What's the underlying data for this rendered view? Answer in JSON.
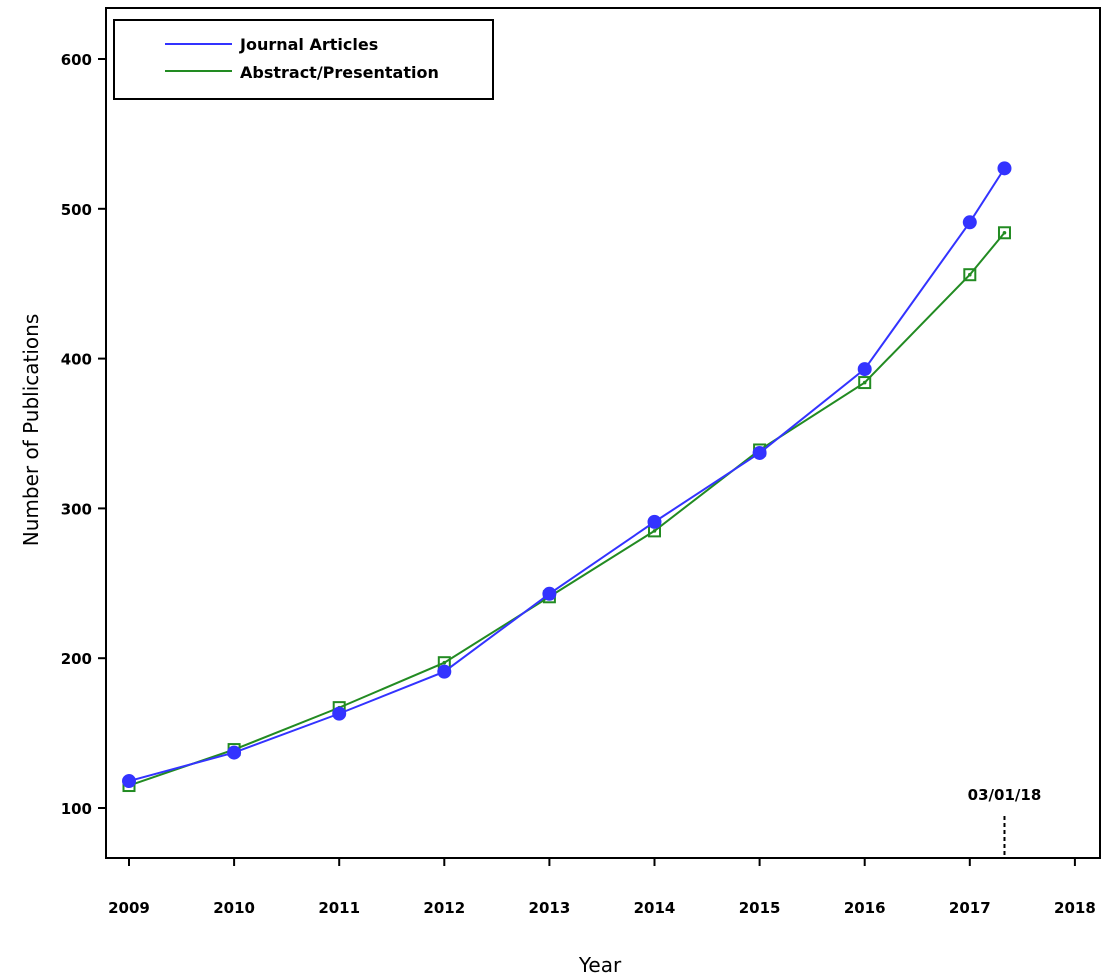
{
  "chart_data": {
    "type": "line",
    "title": "",
    "xlabel": "Year",
    "ylabel": "Number of Publications",
    "xlim": [
      2009,
      2018
    ],
    "ylim": [
      70,
      635
    ],
    "x_ticks": [
      "2009",
      "2010",
      "2011",
      "2012",
      "2013",
      "2014",
      "2015",
      "2016",
      "2017",
      "2018"
    ],
    "y_ticks": [
      "100",
      "200",
      "300",
      "400",
      "500",
      "600"
    ],
    "grid": false,
    "legend_position": "top-left",
    "series": [
      {
        "name": "Journal Articles",
        "color": "#3333ff",
        "marker": "filled-circle",
        "x": [
          2009,
          2010,
          2011,
          2012,
          2013,
          2014,
          2015,
          2016,
          2017,
          2017.33
        ],
        "y": [
          118,
          137,
          163,
          191,
          243,
          291,
          337,
          393,
          491,
          527
        ]
      },
      {
        "name": "Abstract/Presentation",
        "color": "#228b22",
        "marker": "open-square",
        "x": [
          2009,
          2010,
          2011,
          2012,
          2013,
          2014,
          2015,
          2016,
          2017,
          2017.33
        ],
        "y": [
          115,
          139,
          167,
          197,
          241,
          285,
          339,
          384,
          456,
          484
        ]
      }
    ],
    "annotation": {
      "label": "03/01/18",
      "x": 2017.33
    }
  }
}
